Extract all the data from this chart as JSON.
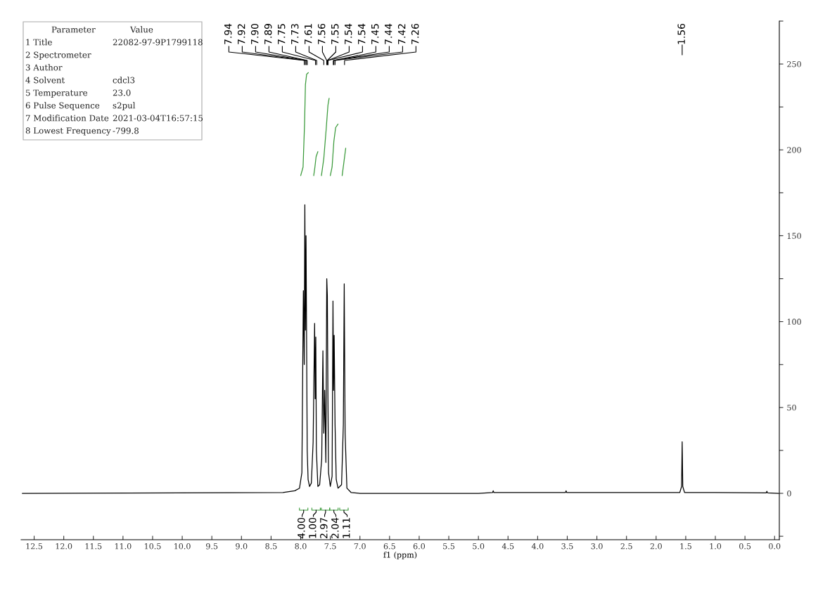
{
  "chart_data": {
    "type": "line",
    "xlabel": "f1 (ppm)",
    "xlim": [
      12.72,
      -0.08
    ],
    "ylim": [
      -27,
      275
    ],
    "xticks": [
      {
        "value": 12.5,
        "label": "12.5"
      },
      {
        "value": 12,
        "label": "12.0"
      },
      {
        "value": 11.5,
        "label": "11.5"
      },
      {
        "value": 11,
        "label": "11.0"
      },
      {
        "value": 10.5,
        "label": "10.5"
      },
      {
        "value": 10,
        "label": "10.0"
      },
      {
        "value": 9.5,
        "label": "9.5"
      },
      {
        "value": 9,
        "label": "9.0"
      },
      {
        "value": 8.5,
        "label": "8.5"
      },
      {
        "value": 8,
        "label": "8.0"
      },
      {
        "value": 7.5,
        "label": "7.5"
      },
      {
        "value": 7,
        "label": "7.0"
      },
      {
        "value": 6.5,
        "label": "6.5"
      },
      {
        "value": 6,
        "label": "6.0"
      },
      {
        "value": 5.5,
        "label": "5.5"
      },
      {
        "value": 5,
        "label": "5.0"
      },
      {
        "value": 4.5,
        "label": "4.5"
      },
      {
        "value": 4,
        "label": "4.0"
      },
      {
        "value": 3.5,
        "label": "3.5"
      },
      {
        "value": 3,
        "label": "3.0"
      },
      {
        "value": 2.5,
        "label": "2.5"
      },
      {
        "value": 2,
        "label": "2.0"
      },
      {
        "value": 1.5,
        "label": "1.5"
      },
      {
        "value": 1,
        "label": "1.0"
      },
      {
        "value": 0.5,
        "label": "0.5"
      },
      {
        "value": 0,
        "label": "0.0"
      }
    ],
    "yticks": [
      {
        "value": -25,
        "label": null
      },
      0,
      {
        "value": 25,
        "label": null
      },
      50,
      {
        "value": 75,
        "label": null
      },
      100,
      {
        "value": 125,
        "label": null
      },
      150,
      {
        "value": 175,
        "label": null
      },
      200,
      {
        "value": 225,
        "label": null
      },
      250,
      {
        "value": 275,
        "label": null
      }
    ],
    "grid": false,
    "series": [
      {
        "color": "#000000",
        "x": [
          12.7,
          8.3,
          8.1,
          8.02,
          7.98,
          7.955,
          7.94,
          7.93,
          7.92,
          7.91,
          7.9,
          7.89,
          7.875,
          7.85,
          7.82,
          7.79,
          7.765,
          7.755,
          7.745,
          7.735,
          7.71,
          7.68,
          7.645,
          7.625,
          7.61,
          7.595,
          7.575,
          7.56,
          7.55,
          7.54,
          7.53,
          7.5,
          7.47,
          7.455,
          7.445,
          7.435,
          7.42,
          7.4,
          7.37,
          7.31,
          7.28,
          7.265,
          7.25,
          7.22,
          7.15,
          7.0,
          5.0,
          4.76,
          4.75,
          4.74,
          3.53,
          3.52,
          3.51,
          1.6,
          1.57,
          1.56,
          1.55,
          1.52,
          0.14,
          0.13,
          0.12,
          -0.07
        ],
        "values": [
          0,
          0.5,
          1.5,
          3,
          12,
          118,
          75,
          168,
          95,
          150,
          88,
          25,
          8,
          4,
          6,
          30,
          99,
          55,
          91,
          25,
          4,
          5,
          20,
          83,
          35,
          60,
          18,
          125,
          115,
          55,
          12,
          4,
          10,
          112,
          60,
          92,
          40,
          8,
          3,
          5,
          40,
          122,
          35,
          3,
          0.5,
          0,
          0,
          0.5,
          1.5,
          0.5,
          0.5,
          1.5,
          0.5,
          0.5,
          4,
          30,
          4,
          0.5,
          0.3,
          1.2,
          0.3,
          0
        ]
      },
      {
        "color": "#3a9a3a",
        "x": [
          8.0,
          7.96,
          7.935,
          7.92,
          7.9,
          7.87
        ],
        "values": [
          185,
          190,
          215,
          238,
          244,
          245
        ]
      },
      {
        "color": "#3a9a3a",
        "x": [
          7.78,
          7.76,
          7.74,
          7.71
        ],
        "values": [
          185,
          190,
          196,
          199
        ]
      },
      {
        "color": "#3a9a3a",
        "x": [
          7.65,
          7.61,
          7.57,
          7.54,
          7.52
        ],
        "values": [
          185,
          195,
          212,
          226,
          230
        ]
      },
      {
        "color": "#3a9a3a",
        "x": [
          7.5,
          7.47,
          7.44,
          7.41,
          7.37
        ],
        "values": [
          185,
          190,
          205,
          213,
          215
        ]
      },
      {
        "color": "#3a9a3a",
        "x": [
          7.3,
          7.27,
          7.24
        ],
        "values": [
          185,
          193,
          201
        ]
      }
    ],
    "annotations": [
      "Parameter\tValue",
      "1 Title\t22082-97-9P1799118",
      "2 Spectrometer",
      "3 Author",
      "4 Solvent\tcdcl3",
      "5 Temperature\t23.0",
      "6 Pulse Sequence\ts2pul",
      "7 Modification Date\t2021-03-04T16:57:15",
      "8 Lowest Frequency\t-799.8",
      {
        "text": "7.94",
        "x": 7.94
      },
      {
        "text": "7.92",
        "x": 7.92
      },
      {
        "text": "7.90",
        "x": 7.9
      },
      {
        "text": "7.89",
        "x": 7.89
      },
      {
        "text": "7.75",
        "x": 7.75
      },
      {
        "text": "7.73",
        "x": 7.73
      },
      {
        "text": "7.61",
        "x": 7.61
      },
      {
        "text": "7.56",
        "x": 7.56
      },
      {
        "text": "7.55",
        "x": 7.55
      },
      {
        "text": "7.54",
        "x": 7.54
      },
      {
        "text": "7.54",
        "x": 7.54
      },
      {
        "text": "7.45",
        "x": 7.45
      },
      {
        "text": "7.44",
        "x": 7.44
      },
      {
        "text": "7.42",
        "x": 7.42
      },
      {
        "text": "7.26",
        "x": 7.26
      },
      {
        "text": "1.56",
        "x": 1.56
      },
      {
        "text": "4.00",
        "x": 7.95
      },
      {
        "text": "1.00",
        "x": 7.74
      },
      {
        "text": "2.97",
        "x": 7.58
      },
      {
        "text": "2.04",
        "x": 7.44
      },
      {
        "text": "1.11",
        "x": 7.27
      }
    ]
  }
}
